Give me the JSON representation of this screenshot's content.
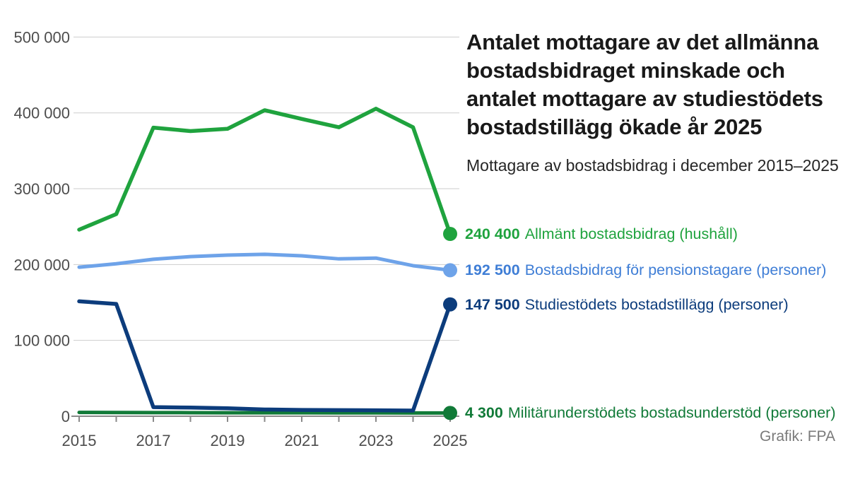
{
  "header": {
    "title_lines": [
      "Antalet mottagare av det allmänna",
      "bostadsbidraget minskade och",
      "antalet mottagare av studiestödets",
      "bostadstillägg ökade år 2025"
    ],
    "subtitle": "Mottagare av bostadsbidrag i december 2015–2025"
  },
  "credit": "Grafik: FPA",
  "chart_data": {
    "type": "line",
    "title": "Antalet mottagare av det allmänna bostadsbidraget minskade och antalet mottagare av studiestödets bostadstillägg ökade år 2025",
    "subtitle": "Mottagare av bostadsbidrag i december 2015–2025",
    "x": [
      2015,
      2016,
      2017,
      2018,
      2019,
      2020,
      2021,
      2022,
      2023,
      2024,
      2025
    ],
    "x_tick_labels": [
      "2015",
      "2017",
      "2019",
      "2021",
      "2023",
      "2025"
    ],
    "y_ticks": [
      {
        "value": 0,
        "label": "0"
      },
      {
        "value": 100000,
        "label": "100 000"
      },
      {
        "value": 200000,
        "label": "200 000"
      },
      {
        "value": 300000,
        "label": "300 000"
      },
      {
        "value": 400000,
        "label": "400 000"
      },
      {
        "value": 500000,
        "label": "500 000"
      }
    ],
    "ylim": [
      0,
      500000
    ],
    "grid": true,
    "legend_position": "right of line ends",
    "colors": {
      "grid": "#cdcdcd",
      "axis": "#8a8a8a",
      "tick_text": "#4d4d4d"
    },
    "series": [
      {
        "id": "allmant",
        "name": "Allmänt bostadsbidrag (hushåll)",
        "end_label": "240 400",
        "end_value": 240400,
        "color": "#1fa33e",
        "text_color": "#1fa33e",
        "values": [
          246000,
          266500,
          380500,
          376000,
          379000,
          403500,
          392000,
          381000,
          405500,
          381000,
          240400
        ]
      },
      {
        "id": "pension",
        "name": "Bostadsbidrag för pensionstagare (personer)",
        "end_label": "192 500",
        "end_value": 192500,
        "color": "#6ea3e9",
        "text_color": "#3f7ed6",
        "values": [
          196500,
          201000,
          207000,
          210500,
          212500,
          213500,
          211500,
          207500,
          208500,
          198500,
          192500
        ]
      },
      {
        "id": "studie",
        "name": "Studiestödets bostadstillägg (personer)",
        "end_label": "147 500",
        "end_value": 147500,
        "color": "#0c3c7c",
        "text_color": "#0c3c7c",
        "values": [
          151500,
          148000,
          12000,
          11400,
          10500,
          8900,
          8300,
          8000,
          7800,
          7500,
          147500
        ]
      },
      {
        "id": "militar",
        "name": "Militärunderstödets bostadsunderstöd (personer)",
        "end_label": "4 300",
        "end_value": 4300,
        "color": "#117a38",
        "text_color": "#117a38",
        "values": [
          5000,
          4900,
          4800,
          4700,
          4600,
          4500,
          4500,
          4400,
          4400,
          4300,
          4300
        ]
      }
    ]
  }
}
